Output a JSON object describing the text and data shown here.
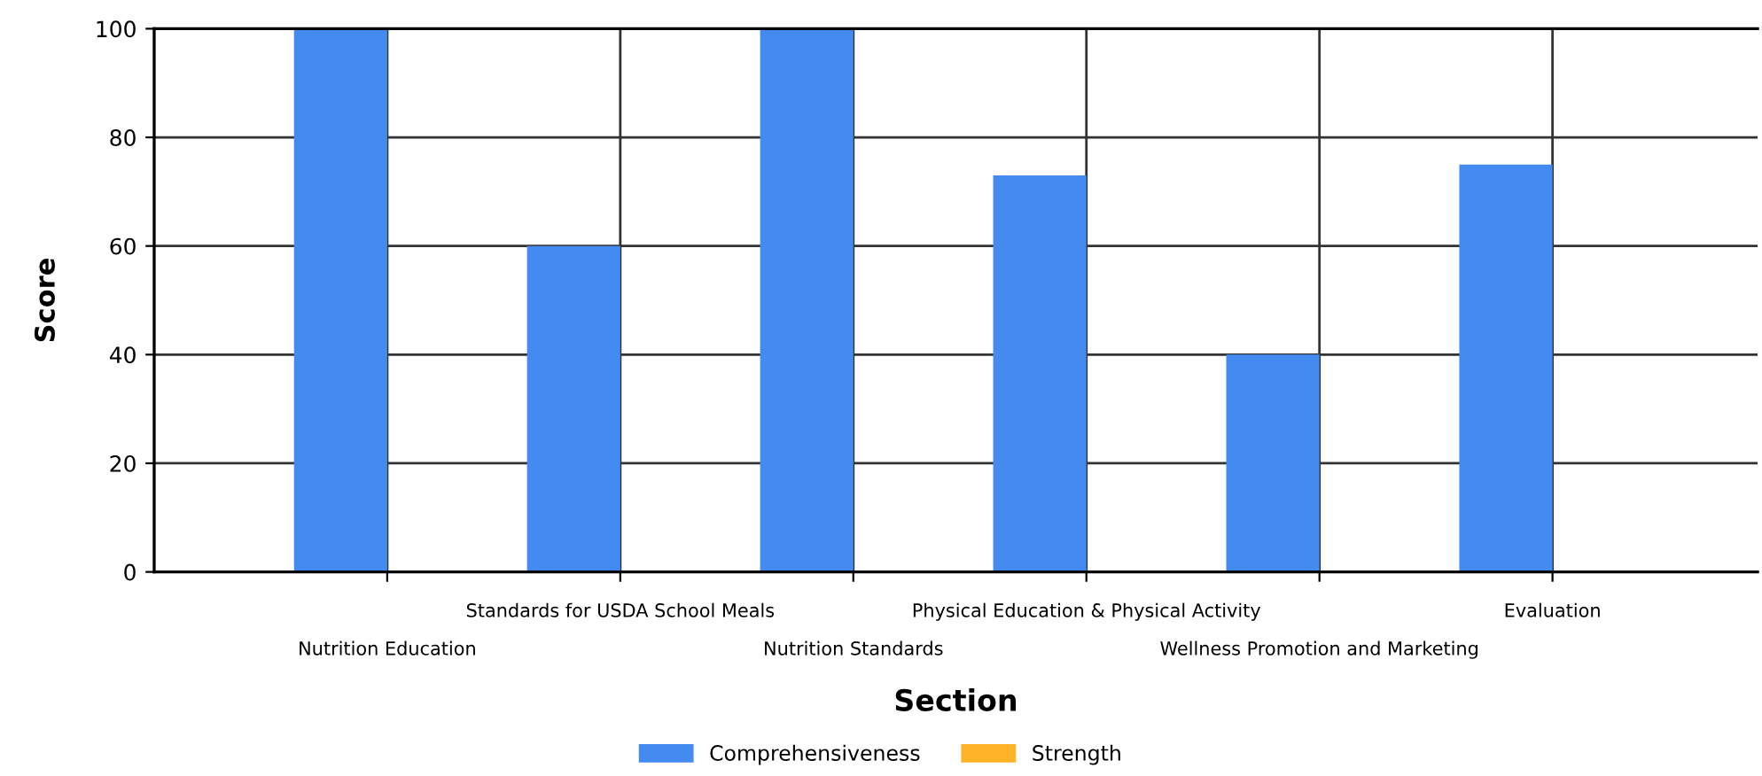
{
  "chart_data": {
    "type": "bar",
    "xlabel": "Section",
    "ylabel": "Score",
    "categories": [
      "Nutrition Education",
      "Standards for USDA School Meals",
      "Nutrition Standards",
      "Physical Education & Physical Activity",
      "Wellness Promotion and Marketing",
      "Evaluation"
    ],
    "series": [
      {
        "name": "Comprehensiveness",
        "color": "#438bf0",
        "values": [
          100,
          60,
          100,
          73,
          40,
          75
        ]
      },
      {
        "name": "Strength",
        "color": "#ffb327",
        "values": [
          0,
          0,
          0,
          0,
          0,
          0
        ]
      }
    ],
    "ylim": [
      0,
      100
    ],
    "yticks": [
      0,
      20,
      40,
      60,
      80,
      100
    ],
    "grid": true,
    "legend": "bottom"
  }
}
